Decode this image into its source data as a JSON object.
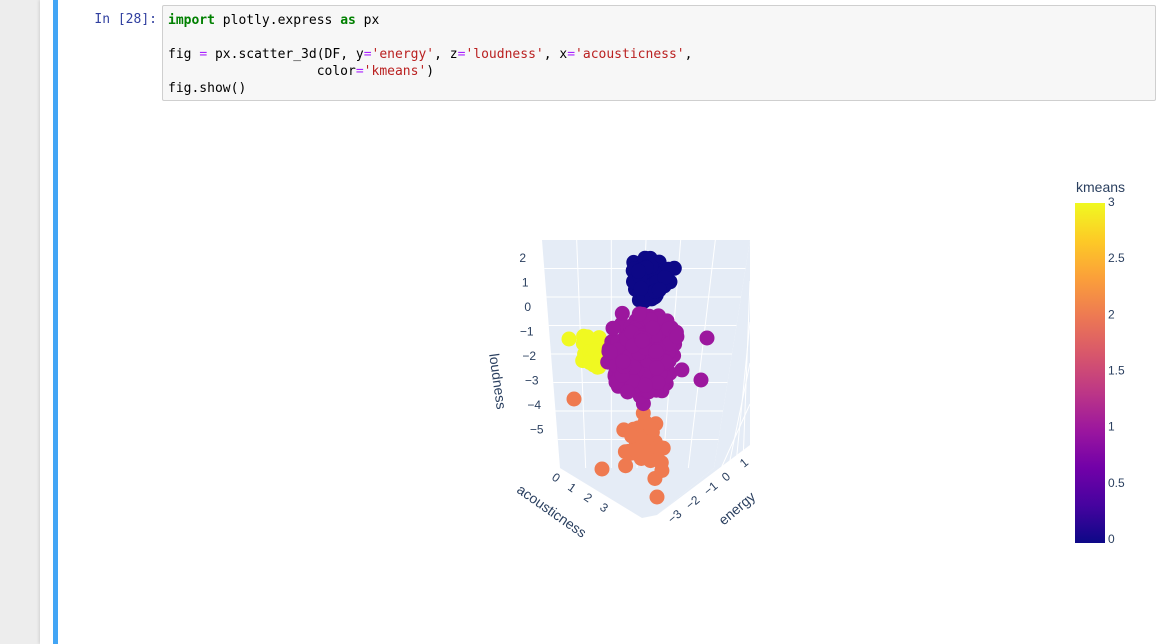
{
  "cell": {
    "prompt": "In [28]:",
    "code": {
      "line1": {
        "kw1": "import",
        "t1": " plotly.express ",
        "kw2": "as",
        "t2": " px"
      },
      "line3": {
        "t1": "fig ",
        "op1": "=",
        "t2": " px.scatter_3d(DF, y",
        "op2": "=",
        "s1": "'energy'",
        "t3": ", z",
        "op3": "=",
        "s2": "'loudness'",
        "t4": ", x",
        "op4": "=",
        "s3": "'acousticness'",
        "t5": ","
      },
      "line4": {
        "t1": "                   color",
        "op1": "=",
        "s1": "'kmeans'",
        "t2": ")"
      },
      "line5": {
        "t1": "fig.show()"
      }
    }
  },
  "chart_data": {
    "type": "scatter",
    "library": "plotly 3d scatter",
    "axes": {
      "x": {
        "title": "acousticness",
        "ticks": [
          "0",
          "1",
          "2",
          "3"
        ]
      },
      "y": {
        "title": "energy",
        "ticks": [
          "−3",
          "−2",
          "−1",
          "0",
          "1"
        ]
      },
      "z": {
        "title": "loudness",
        "ticks": [
          "2",
          "1",
          "0",
          "−1",
          "−2",
          "−3",
          "−4",
          "−5"
        ]
      }
    },
    "colorbar": {
      "title": "kmeans",
      "ticks": [
        "3",
        "2.5",
        "2",
        "1.5",
        "1",
        "0.5",
        "0"
      ],
      "range": [
        0,
        3
      ],
      "colors": [
        "#0d0887",
        "#46039f",
        "#7201a8",
        "#9c179e",
        "#bd3786",
        "#d8576b",
        "#ed7953",
        "#fb9f3a",
        "#fdca26",
        "#f0f921"
      ]
    },
    "clusters": [
      {
        "kmeans": 0,
        "color": "#0d0887"
      },
      {
        "kmeans": 1,
        "color": "#9c179e"
      },
      {
        "kmeans": 2,
        "color": "#ef7a50"
      },
      {
        "kmeans": 3,
        "color": "#f0f921"
      }
    ],
    "grid": true,
    "legend": "colorbar-right"
  }
}
